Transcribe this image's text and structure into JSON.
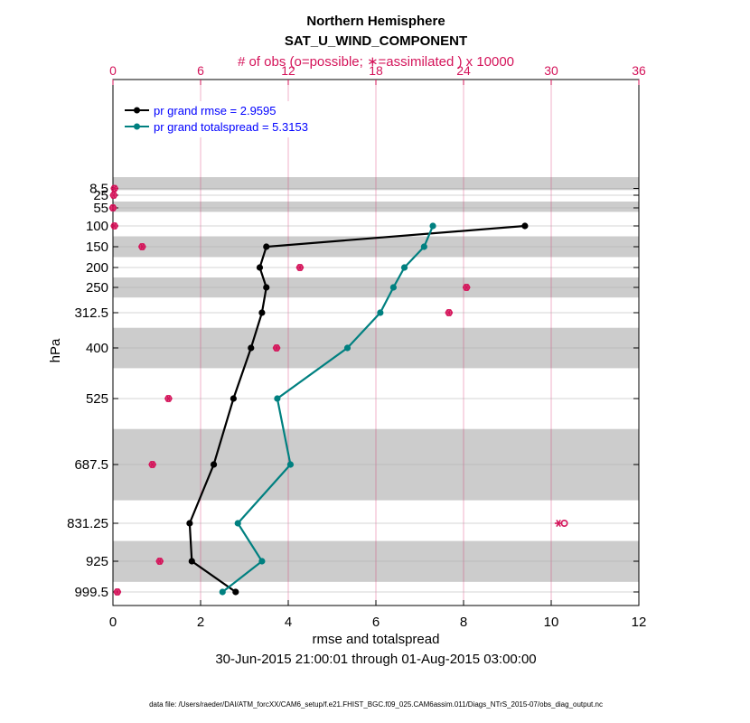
{
  "chart_data": {
    "type": "line",
    "title": "Northern Hemisphere",
    "subtitle": "SAT_U_WIND_COMPONENT",
    "top_axis_label": "# of obs (o=possible; ∗=assimilated ) x 10000",
    "xlabel": "rmse and totalspread",
    "ylabel": "hPa",
    "date_range": "30-Jun-2015 21:00:01 through 01-Aug-2015 03:00:00",
    "footnote": "data file: /Users/raeder/DAI/ATM_forcXX/CAM6_setup/f.e21.FHIST_BGC.f09_025.CAM6assim.011/Diags_NTrS_2015-07/obs_diag_output.nc",
    "xlim": [
      0,
      12
    ],
    "xticks": [
      "0",
      "2",
      "4",
      "6",
      "8",
      "10",
      "12"
    ],
    "top_xlim": [
      0,
      36
    ],
    "top_xticks": [
      "0",
      "6",
      "12",
      "18",
      "24",
      "30",
      "36"
    ],
    "levels": [
      "8.5",
      "25",
      "55",
      "100",
      "150",
      "200",
      "250",
      "312.5",
      "400",
      "525",
      "687.5",
      "831.25",
      "925",
      "999.5"
    ],
    "shaded_bands": [
      [
        0,
        12.5
      ],
      [
        40,
        65
      ],
      [
        125,
        175
      ],
      [
        225,
        275
      ],
      [
        350,
        450
      ],
      [
        600,
        775
      ],
      [
        875,
        975
      ]
    ],
    "legend": [
      "pr grand rmse = 2.9595",
      "pr grand totalspread = 5.3153"
    ],
    "series": [
      {
        "name": "pr grand rmse = 2.9595",
        "color": "#000000",
        "points": [
          [
            9.4,
            100
          ],
          [
            3.5,
            150
          ],
          [
            3.35,
            200
          ],
          [
            3.5,
            250
          ],
          [
            3.4,
            312.5
          ],
          [
            3.15,
            400
          ],
          [
            2.75,
            525
          ],
          [
            2.3,
            687.5
          ],
          [
            1.75,
            831.25
          ],
          [
            1.8,
            925
          ],
          [
            2.8,
            999.5
          ]
        ]
      },
      {
        "name": "pr grand totalspread = 5.3153",
        "color": "#008080",
        "points": [
          [
            7.3,
            100
          ],
          [
            7.1,
            150
          ],
          [
            6.65,
            200
          ],
          [
            6.4,
            250
          ],
          [
            6.1,
            312.5
          ],
          [
            5.35,
            400
          ],
          [
            3.75,
            525
          ],
          [
            4.05,
            687.5
          ],
          [
            2.85,
            831.25
          ],
          [
            3.4,
            925
          ],
          [
            2.5,
            999.5
          ]
        ]
      }
    ],
    "obs_counts": {
      "axis": "top",
      "color": "#d4145a",
      "possible": [
        [
          0.1,
          8.5
        ],
        [
          0.05,
          25
        ],
        [
          0.0,
          55
        ],
        [
          0.1,
          100
        ],
        [
          2.0,
          150
        ],
        [
          12.8,
          200
        ],
        [
          24.2,
          250
        ],
        [
          23.0,
          312.5
        ],
        [
          11.2,
          400
        ],
        [
          3.8,
          525
        ],
        [
          2.7,
          687.5
        ],
        [
          30.9,
          831.25
        ],
        [
          3.2,
          925
        ],
        [
          0.3,
          999.5
        ]
      ],
      "assimilated": [
        [
          0.1,
          8.5
        ],
        [
          0.05,
          25
        ],
        [
          0.0,
          55
        ],
        [
          0.1,
          100
        ],
        [
          2.0,
          150
        ],
        [
          12.8,
          200
        ],
        [
          24.2,
          250
        ],
        [
          23.0,
          312.5
        ],
        [
          11.2,
          400
        ],
        [
          3.8,
          525
        ],
        [
          2.7,
          687.5
        ],
        [
          30.5,
          831.25
        ],
        [
          3.2,
          925
        ],
        [
          0.3,
          999.5
        ]
      ]
    }
  }
}
